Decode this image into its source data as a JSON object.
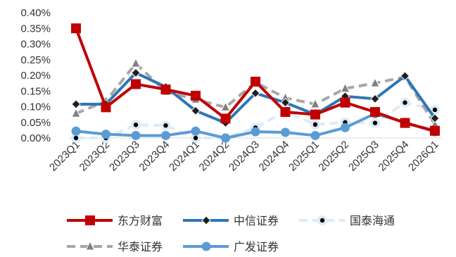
{
  "chart_data": {
    "type": "line",
    "title": "",
    "xlabel": "",
    "ylabel": "",
    "ylim": [
      0,
      0.004
    ],
    "yticks": [
      "0.00%",
      "0.05%",
      "0.10%",
      "0.15%",
      "0.20%",
      "0.25%",
      "0.30%",
      "0.35%",
      "0.40%"
    ],
    "categories": [
      "2023Q1",
      "2023Q2",
      "2023Q3",
      "2023Q4",
      "2024Q1",
      "2024Q2",
      "2024Q3",
      "2024Q4",
      "2025Q1",
      "2025Q2",
      "2025Q3",
      "2025Q4",
      "2026Q1"
    ],
    "grid": false,
    "legend_position": "bottom",
    "series": [
      {
        "name": "东方财富",
        "color": "#C00000",
        "marker": "square",
        "dash": "solid",
        "values": [
          0.0035,
          0.00098,
          0.00172,
          0.00155,
          0.00135,
          0.00062,
          0.0018,
          0.00083,
          0.00075,
          0.00113,
          0.00083,
          0.00048,
          0.00023
        ]
      },
      {
        "name": "中信证券",
        "color": "#2E75B6",
        "marker": "diamond",
        "dash": "solid",
        "values": [
          0.00108,
          0.00108,
          0.00208,
          0.00163,
          0.00087,
          0.00048,
          0.00143,
          0.00113,
          0.00075,
          0.00133,
          0.00125,
          0.00198,
          0.00063
        ]
      },
      {
        "name": "国泰海通",
        "color": "#DDEBF7",
        "marker": "circle-dot",
        "dash": "dashed",
        "values": [
          0.0,
          0.0,
          0.00042,
          0.0004,
          0.0,
          0.0,
          0.00033,
          0.00085,
          0.00043,
          0.0005,
          0.00048,
          0.00113,
          0.0009
        ]
      },
      {
        "name": "华泰证券",
        "color": "#A6A6A6",
        "marker": "triangle",
        "dash": "dashed",
        "values": [
          0.00078,
          0.00118,
          0.00238,
          0.00148,
          0.00123,
          0.00098,
          0.00178,
          0.00128,
          0.00108,
          0.00158,
          0.00175,
          0.00195,
          0.00043
        ]
      },
      {
        "name": "广发证券",
        "color": "#5B9BD5",
        "marker": "circle",
        "dash": "solid",
        "values": [
          0.00022,
          0.00012,
          8e-05,
          8e-05,
          0.00022,
          0.0,
          0.0002,
          0.00018,
          8e-05,
          0.00033,
          0.00078,
          0.0005,
          0.0002
        ]
      }
    ]
  }
}
